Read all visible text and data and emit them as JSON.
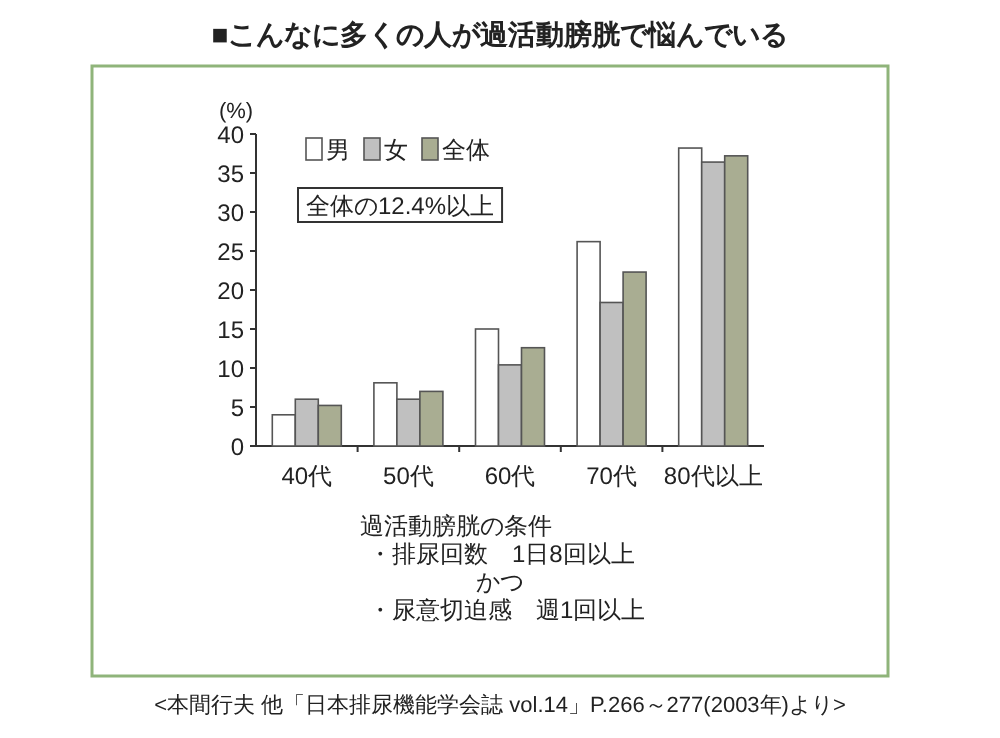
{
  "chart_data": {
    "type": "bar",
    "title": "■こんなに多くの人が過活動膀胱で悩んでいる",
    "ylabel": "(%)",
    "categories": [
      "40代",
      "50代",
      "60代",
      "70代",
      "80代以上"
    ],
    "series": [
      {
        "name": "男",
        "color": "#ffffff",
        "values": [
          4.0,
          8.1,
          15.0,
          26.2,
          38.2
        ]
      },
      {
        "name": "女",
        "color": "#c0c0c0",
        "values": [
          6.0,
          6.0,
          10.4,
          18.4,
          36.4
        ]
      },
      {
        "name": "全体",
        "color": "#a9ad92",
        "values": [
          5.2,
          7.0,
          12.6,
          22.3,
          37.2
        ]
      }
    ],
    "ylim": [
      0,
      40
    ],
    "yticks": [
      0,
      5,
      10,
      15,
      20,
      25,
      30,
      35,
      40
    ],
    "legend": "top left",
    "annotations": [
      "全体の12.4%以上",
      "過活動膀胱の条件",
      "・排尿回数　1日8回以上",
      "かつ",
      "・尿意切迫感　週1回以上",
      "<本間行夫 他「日本排尿機能学会誌 vol.14」P.266～277(2003年)より>"
    ]
  }
}
